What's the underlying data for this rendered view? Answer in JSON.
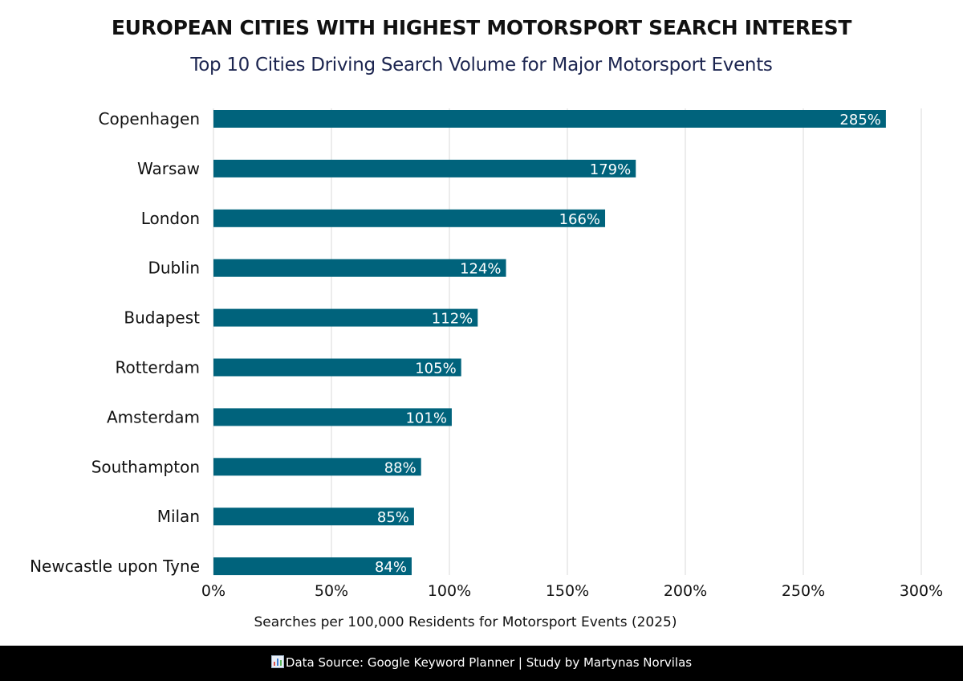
{
  "chart_data": {
    "type": "bar",
    "orientation": "horizontal",
    "title": "EUROPEAN CITIES WITH HIGHEST MOTORSPORT SEARCH INTEREST",
    "subtitle": "Top 10 Cities Driving Search Volume for Major Motorsport Events",
    "xlabel": "Searches per 100,000 Residents for Motorsport Events (2025)",
    "ylabel": "",
    "categories": [
      "Copenhagen",
      "Warsaw",
      "London",
      "Dublin",
      "Budapest",
      "Rotterdam",
      "Amsterdam",
      "Southampton",
      "Milan",
      "Newcastle upon Tyne"
    ],
    "values": [
      285,
      179,
      166,
      124,
      112,
      105,
      101,
      88,
      85,
      84
    ],
    "data_labels": [
      "285%",
      "179%",
      "166%",
      "124%",
      "112%",
      "105%",
      "101%",
      "88%",
      "85%",
      "84%"
    ],
    "xlim": [
      0,
      300
    ],
    "xticks": [
      0,
      50,
      100,
      150,
      200,
      250,
      300
    ],
    "xtick_labels": [
      "0%",
      "50%",
      "100%",
      "150%",
      "200%",
      "250%",
      "300%"
    ],
    "grid": "vertical",
    "legend": "none",
    "bar_color": "#00637c",
    "grid_color": "#d9d9d9"
  },
  "footer": {
    "source_icon": "bar-chart-icon",
    "text": "Data Source: Google Keyword Planner | Study by Martynas Norvilas"
  }
}
